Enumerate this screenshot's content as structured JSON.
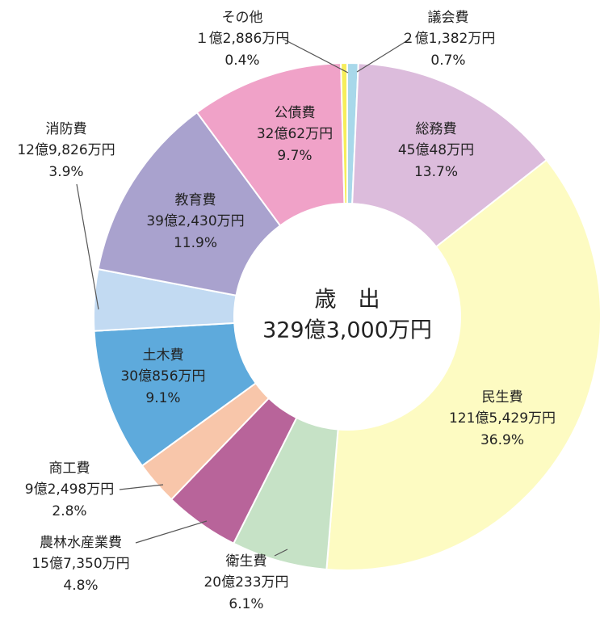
{
  "chart_data": {
    "type": "donut",
    "center_title": "歳　出",
    "center_total": "329億3,000万円",
    "categories": [
      "議会費",
      "総務費",
      "民生費",
      "衛生費",
      "農林水産業費",
      "商工費",
      "土木費",
      "消防費",
      "教育費",
      "公債費",
      "その他"
    ],
    "amounts": [
      "２億1,382万円",
      "45億48万円",
      "121億5,429万円",
      "20億233万円",
      "15億7,350万円",
      "9億2,498万円",
      "30億856万円",
      "12億9,826万円",
      "39億2,430万円",
      "32億62万円",
      "１億2,886万円"
    ],
    "values": [
      0.7,
      13.7,
      36.9,
      6.1,
      4.8,
      2.8,
      9.1,
      3.9,
      11.9,
      9.7,
      0.4
    ],
    "value_labels": [
      "0.7%",
      "13.7%",
      "36.9%",
      "6.1%",
      "4.8%",
      "2.8%",
      "9.1%",
      "3.9%",
      "11.9%",
      "9.7%",
      "0.4%"
    ],
    "colors": [
      "#a8d8ea",
      "#dcbcdc",
      "#fdfbc2",
      "#c6e2c6",
      "#b8649a",
      "#f8c6aa",
      "#5eaadc",
      "#c2daf2",
      "#a9a2ce",
      "#f0a2c8",
      "#f6ee5a"
    ]
  }
}
